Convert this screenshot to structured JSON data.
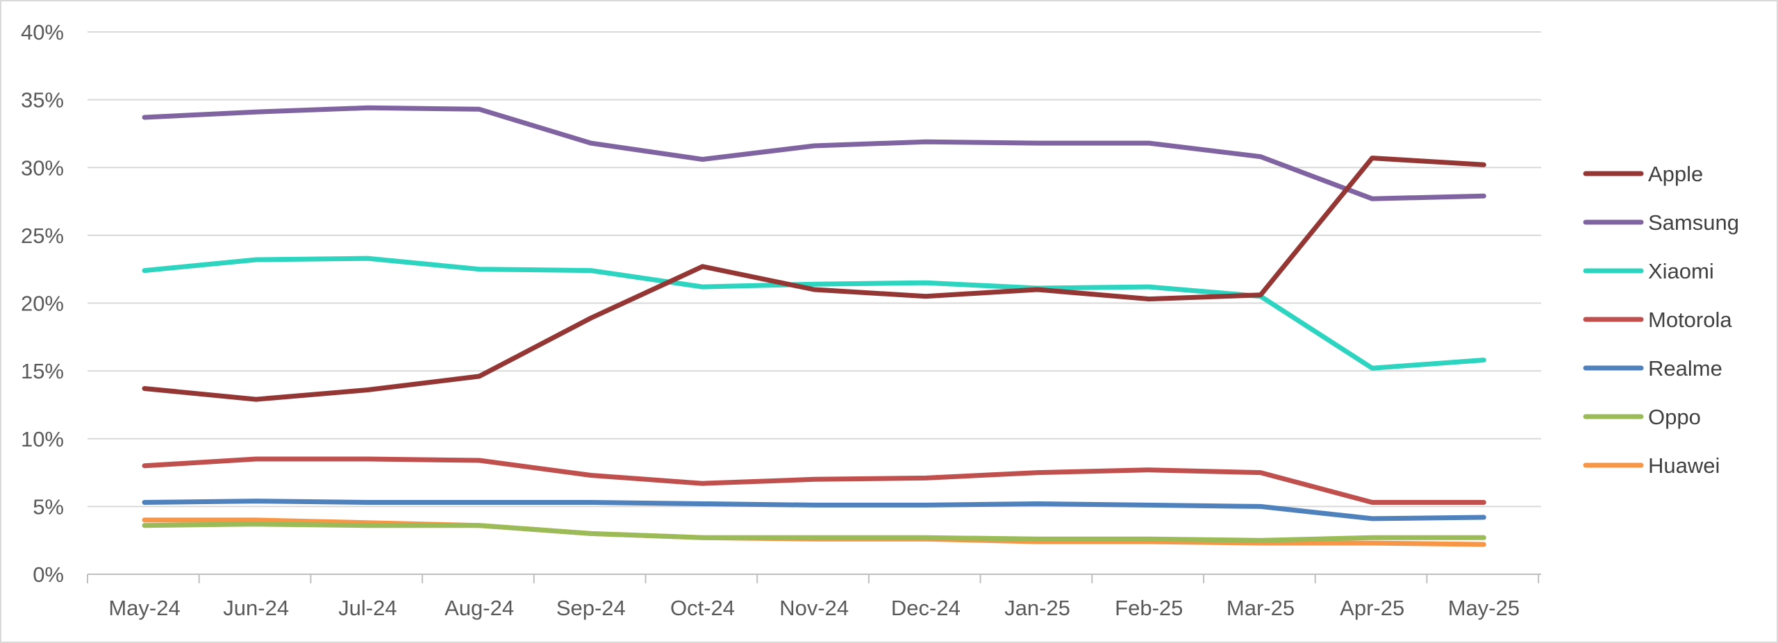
{
  "chart_data": {
    "type": "line",
    "title": "",
    "xlabel": "",
    "ylabel": "",
    "categories": [
      "May-24",
      "Jun-24",
      "Jul-24",
      "Aug-24",
      "Sep-24",
      "Oct-24",
      "Nov-24",
      "Dec-24",
      "Jan-25",
      "Feb-25",
      "Mar-25",
      "Apr-25",
      "May-25"
    ],
    "ylim": [
      0,
      40
    ],
    "y_ticks": [
      "0%",
      "5%",
      "10%",
      "15%",
      "20%",
      "25%",
      "30%",
      "35%",
      "40%"
    ],
    "y_unit": "%",
    "grid": true,
    "legend_position": "right",
    "series": [
      {
        "name": "Apple",
        "color": "#943634",
        "values": [
          13.7,
          12.9,
          13.6,
          14.6,
          18.9,
          22.7,
          21.0,
          20.5,
          21.0,
          20.3,
          20.6,
          30.7,
          30.2
        ]
      },
      {
        "name": "Samsung",
        "color": "#8064a2",
        "values": [
          33.7,
          34.1,
          34.4,
          34.3,
          31.8,
          30.6,
          31.6,
          31.9,
          31.8,
          31.8,
          30.8,
          27.7,
          27.9
        ]
      },
      {
        "name": "Xiaomi",
        "color": "#2dd4bf",
        "values": [
          22.4,
          23.2,
          23.3,
          22.5,
          22.4,
          21.2,
          21.4,
          21.5,
          21.1,
          21.2,
          20.5,
          15.2,
          15.8
        ]
      },
      {
        "name": "Motorola",
        "color": "#c0504d",
        "values": [
          8.0,
          8.5,
          8.5,
          8.4,
          7.3,
          6.7,
          7.0,
          7.1,
          7.5,
          7.7,
          7.5,
          5.3,
          5.3
        ]
      },
      {
        "name": "Realme",
        "color": "#4f81bd",
        "values": [
          5.3,
          5.4,
          5.3,
          5.3,
          5.3,
          5.2,
          5.1,
          5.1,
          5.2,
          5.1,
          5.0,
          4.1,
          4.2
        ]
      },
      {
        "name": "Oppo",
        "color": "#9bbb59",
        "values": [
          3.6,
          3.7,
          3.6,
          3.6,
          3.0,
          2.7,
          2.7,
          2.7,
          2.6,
          2.6,
          2.5,
          2.7,
          2.7
        ]
      },
      {
        "name": "Huawei",
        "color": "#f79646",
        "values": [
          4.0,
          4.0,
          3.8,
          3.6,
          3.0,
          2.7,
          2.6,
          2.6,
          2.4,
          2.4,
          2.3,
          2.3,
          2.2
        ]
      }
    ]
  }
}
